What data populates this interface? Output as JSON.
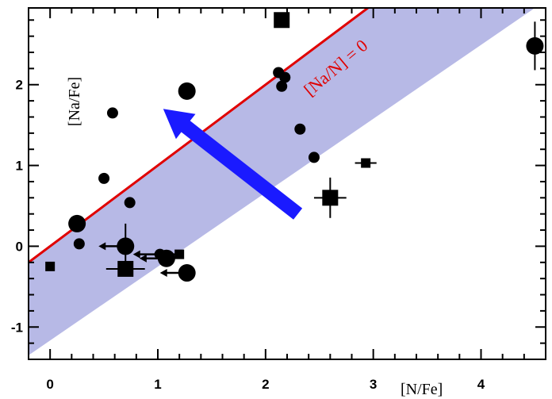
{
  "chart_data": {
    "type": "scatter",
    "xlabel": "[N/Fe]",
    "ylabel": "[Na/Fe]",
    "xlim": [
      -0.2,
      4.6
    ],
    "ylim": [
      -1.4,
      2.95
    ],
    "x_ticks": [
      0,
      1,
      2,
      3,
      4
    ],
    "y_ticks": [
      -1,
      0,
      1,
      2
    ],
    "x_minor_step": 0.2,
    "y_minor_step": 0.2,
    "grid": false,
    "colors": {
      "line": "#e00000",
      "band": "#b7b9e6",
      "arrow": "#1a1aff",
      "points": "#000000"
    },
    "reference_line": {
      "label": "[Na/N] = 0",
      "x": [
        -0.2,
        2.95
      ],
      "y": [
        -0.2,
        2.95
      ]
    },
    "band": {
      "upper": [
        [
          -0.2,
          -0.2
        ],
        [
          2.95,
          2.95
        ]
      ],
      "lower": [
        [
          -0.2,
          -1.35
        ],
        [
          4.5,
          2.95
        ]
      ]
    },
    "arrow": {
      "from": [
        2.3,
        0.4
      ],
      "to": [
        1.05,
        1.7
      ]
    },
    "circles": [
      {
        "x": 0.25,
        "y": 0.28,
        "size": "large"
      },
      {
        "x": 0.27,
        "y": 0.03,
        "size": "small"
      },
      {
        "x": 0.5,
        "y": 0.84,
        "size": "small"
      },
      {
        "x": 0.58,
        "y": 1.65,
        "size": "small"
      },
      {
        "x": 0.7,
        "y": 0.0,
        "size": "large",
        "yerr": 0.28,
        "upper_limit": true
      },
      {
        "x": 0.74,
        "y": 0.54,
        "size": "small"
      },
      {
        "x": 1.02,
        "y": -0.1,
        "size": "small",
        "upper_limit": true
      },
      {
        "x": 1.08,
        "y": -0.15,
        "size": "large",
        "upper_limit": true
      },
      {
        "x": 1.27,
        "y": -0.33,
        "size": "large",
        "upper_limit": true
      },
      {
        "x": 1.27,
        "y": 1.92,
        "size": "large"
      },
      {
        "x": 2.12,
        "y": 2.15,
        "size": "small"
      },
      {
        "x": 2.15,
        "y": 1.98,
        "size": "small"
      },
      {
        "x": 2.18,
        "y": 2.09,
        "size": "small"
      },
      {
        "x": 2.32,
        "y": 1.45,
        "size": "small"
      },
      {
        "x": 2.45,
        "y": 1.1,
        "size": "small"
      },
      {
        "x": 4.5,
        "y": 2.48,
        "size": "large",
        "yerr": 0.3
      }
    ],
    "squares": [
      {
        "x": 0.0,
        "y": -0.25,
        "size": "small"
      },
      {
        "x": 0.7,
        "y": -0.28,
        "size": "large",
        "xerr": 0.18
      },
      {
        "x": 1.2,
        "y": -0.1,
        "size": "small",
        "upper_limit": true
      },
      {
        "x": 2.15,
        "y": 2.8,
        "size": "large"
      },
      {
        "x": 2.6,
        "y": 0.6,
        "size": "large",
        "xerr": 0.15,
        "yerr": 0.25
      },
      {
        "x": 2.93,
        "y": 1.03,
        "size": "small",
        "xerr": 0.1
      }
    ]
  }
}
